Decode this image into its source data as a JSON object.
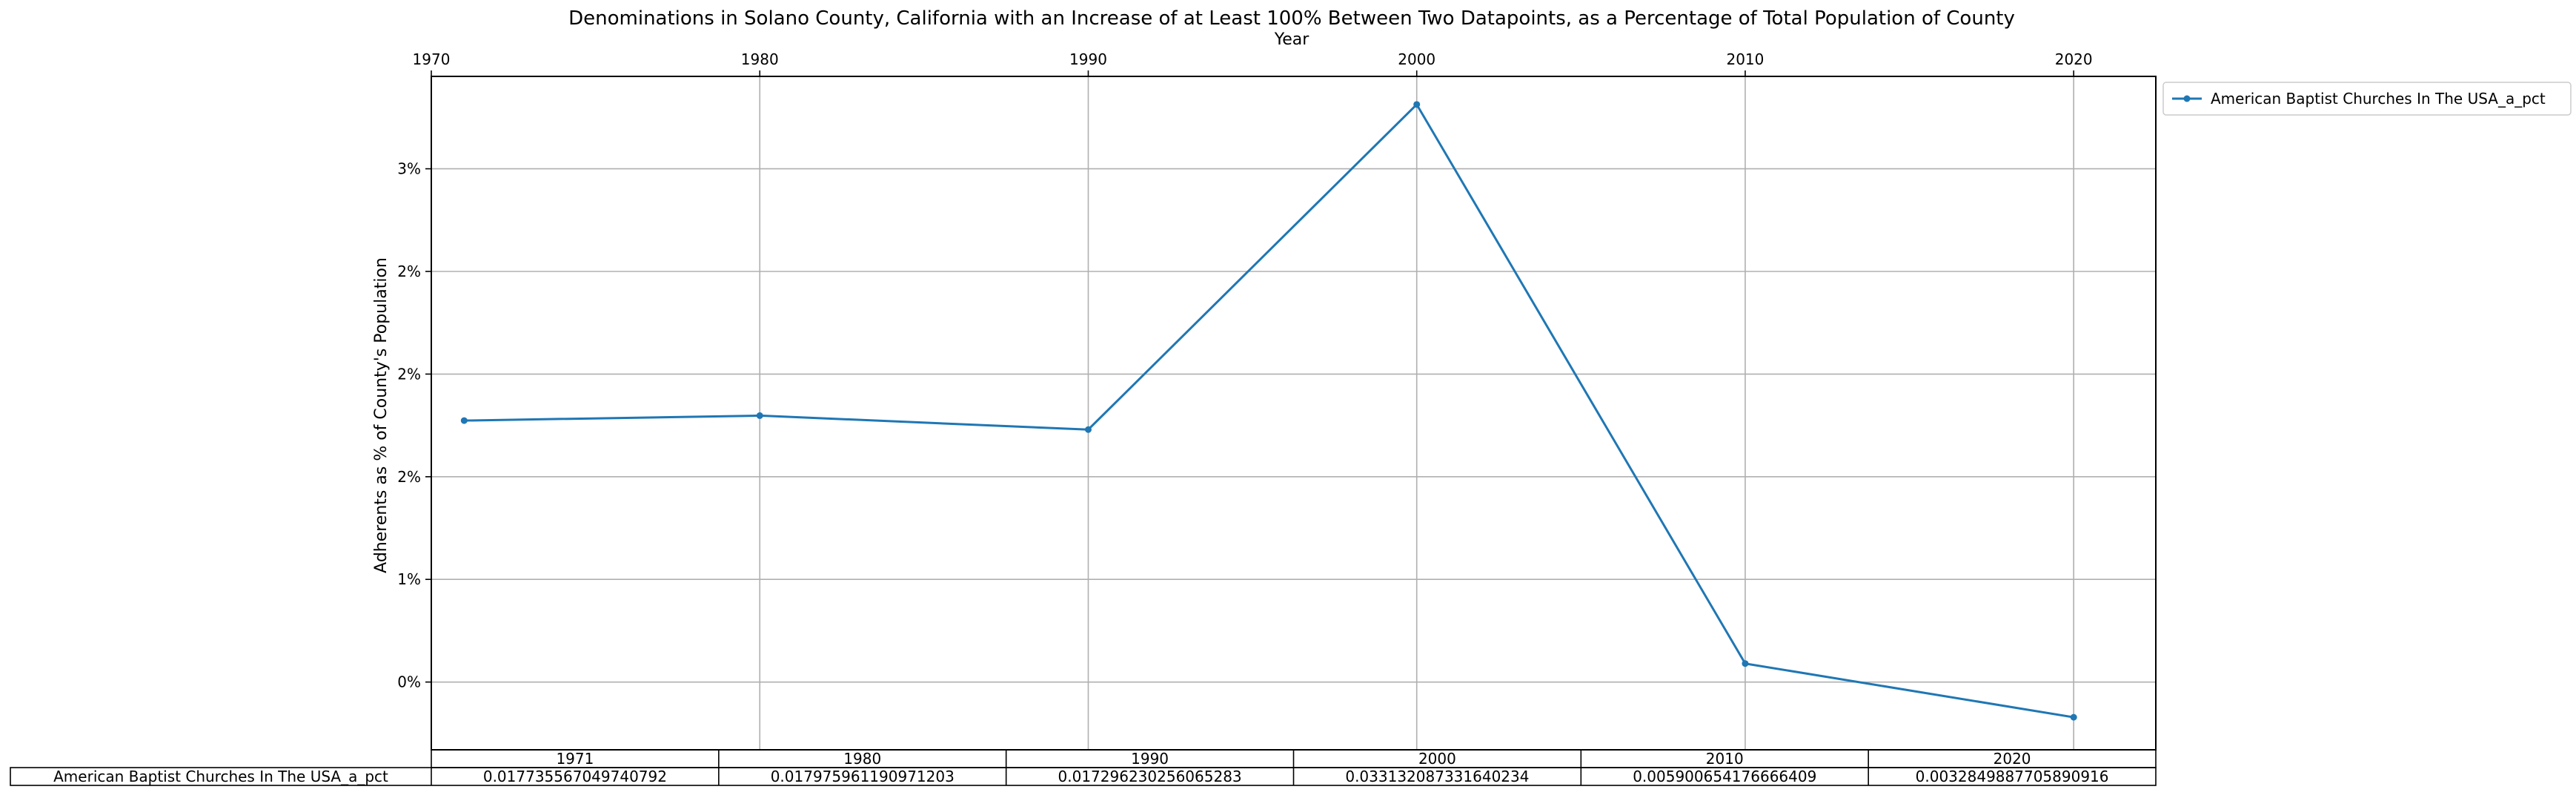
{
  "chart_data": {
    "type": "line",
    "title": "Denominations in Solano County, California with an Increase of at Least 100% Between Two Datapoints, as a Percentage of Total Population of County",
    "xlabel": "Year",
    "ylabel": "Adherents as % of County's Population",
    "x_ticks": [
      "1970",
      "1980",
      "1990",
      "2000",
      "2010",
      "2020"
    ],
    "y_ticks": [
      "0%",
      "1%",
      "2%",
      "2%",
      "2%",
      "3%"
    ],
    "x": [
      1971,
      1980,
      1990,
      2000,
      2010,
      2020
    ],
    "series": [
      {
        "name": "American Baptist Churches In The USA_a_pct",
        "color": "#1f77b4",
        "values": [
          0.017735567049740792,
          0.017975961190971203,
          0.017296230256065283,
          0.033132087331640234,
          0.005900654176666409,
          0.0032849887705890916
        ]
      }
    ],
    "xlim": [
      1970,
      2022.5
    ],
    "ylim": [
      0.0017,
      0.0345
    ],
    "grid": true,
    "legend": "outside-top-right",
    "table": {
      "columns": [
        "1971",
        "1980",
        "1990",
        "2000",
        "2010",
        "2020"
      ],
      "rows": [
        {
          "label": "American Baptist Churches In The USA_a_pct",
          "cells": [
            "0.017735567049740792",
            "0.017975961190971203",
            "0.017296230256065283",
            "0.033132087331640234",
            "0.005900654176666409",
            "0.0032849887705890916"
          ]
        }
      ]
    }
  }
}
